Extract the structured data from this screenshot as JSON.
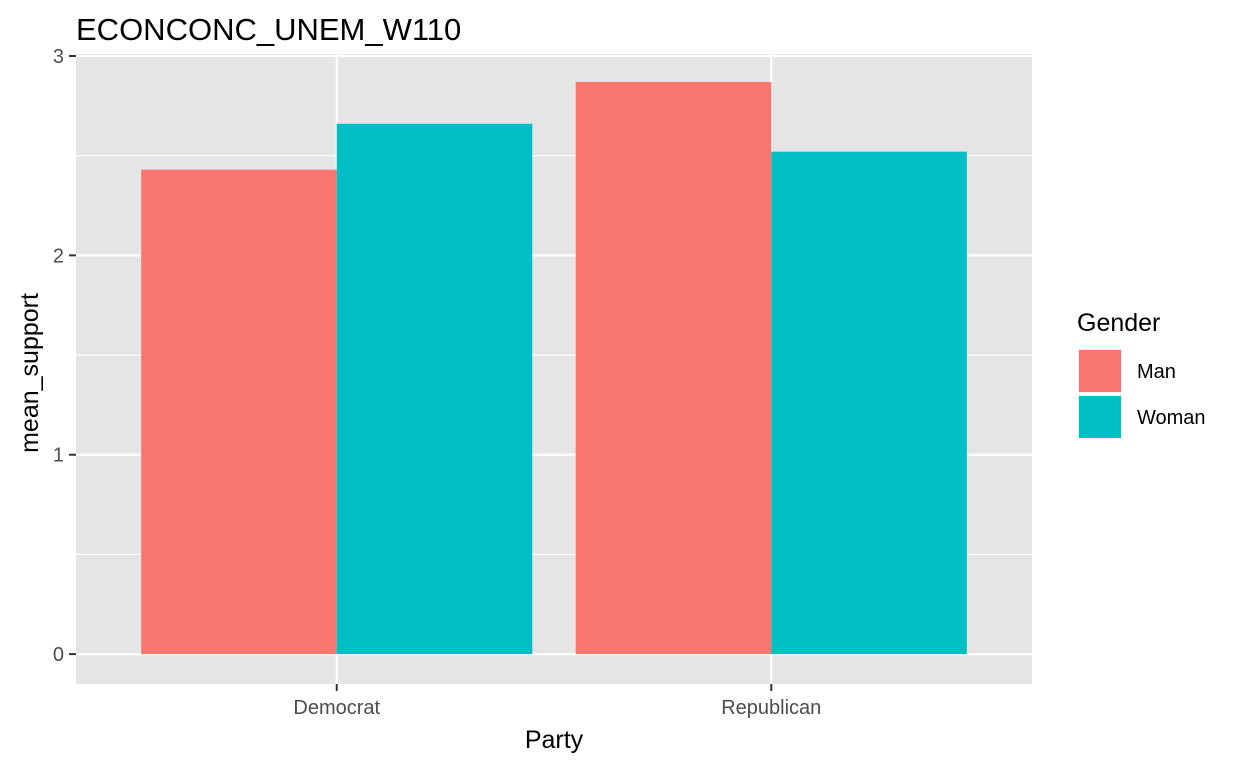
{
  "chart_data": {
    "type": "bar",
    "title": "ECONCONC_UNEM_W110",
    "xlabel": "Party",
    "ylabel": "mean_support",
    "categories": [
      "Democrat",
      "Republican"
    ],
    "series": [
      {
        "name": "Man",
        "color": "#F8766D",
        "values": [
          2.43,
          2.87
        ]
      },
      {
        "name": "Woman",
        "color": "#00BFC4",
        "values": [
          2.66,
          2.52
        ]
      }
    ],
    "ylim": [
      -0.15,
      3.01
    ],
    "yticks": [
      0,
      1,
      2,
      3
    ],
    "grid": true,
    "legend": {
      "title": "Gender",
      "placement": "right"
    },
    "colors": {
      "panel": "#E5E5E5",
      "grid": "#FFFFFF",
      "man": "#F8766D",
      "woman": "#00BFC4"
    }
  }
}
